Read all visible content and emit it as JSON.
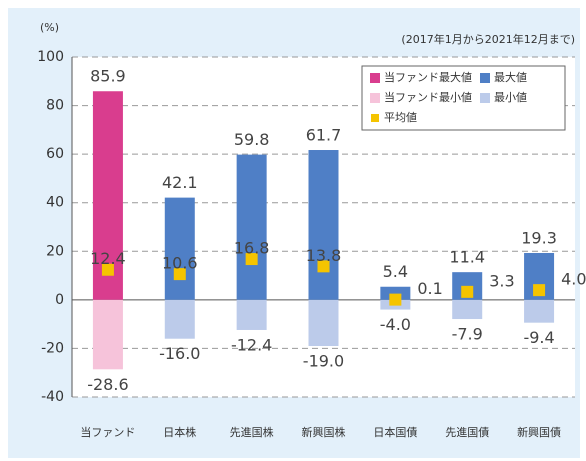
{
  "chart_data": {
    "type": "range_bar",
    "y_label": "(%)",
    "annotation": "(2017年1月から2021年12月まで)",
    "categories": [
      "当ファンド",
      "日本株",
      "先進国株",
      "新興国株",
      "日本国債",
      "先進国債",
      "新興国債"
    ],
    "ylim": [
      -40,
      100
    ],
    "yticks": [
      -40,
      -20,
      0,
      20,
      40,
      60,
      80,
      100
    ],
    "grid": true,
    "legend": "upper right",
    "series": [
      {
        "name": "当ファンド最大値",
        "color": "#d93d8e",
        "role": "bar",
        "values": [
          85.9,
          null,
          null,
          null,
          null,
          null,
          null
        ],
        "value_labels": [
          "85.9",
          null,
          null,
          null,
          null,
          null,
          null
        ]
      },
      {
        "name": "最大値",
        "color": "#4f7fc6",
        "role": "bar",
        "values": [
          null,
          42.1,
          59.8,
          61.7,
          5.4,
          11.4,
          19.3
        ],
        "value_labels": [
          null,
          "42.1",
          "59.8",
          "61.7",
          "5.4",
          "11.4",
          "19.3"
        ]
      },
      {
        "name": "当ファンド最小値",
        "color": "#f6c3da",
        "role": "bar",
        "values": [
          -28.6,
          null,
          null,
          null,
          null,
          null,
          null
        ],
        "value_labels": [
          "-28.6",
          null,
          null,
          null,
          null,
          null,
          null
        ]
      },
      {
        "name": "最小値",
        "color": "#bccbea",
        "role": "bar",
        "values": [
          null,
          -16.0,
          -12.4,
          -19.0,
          -4.0,
          -7.9,
          -9.4
        ],
        "value_labels": [
          null,
          "-16.0",
          "-12.4",
          "-19.0",
          "-4.0",
          "-7.9",
          "-9.4"
        ]
      },
      {
        "name": "平均値",
        "color": "#f5c400",
        "role": "marker",
        "values": [
          12.4,
          10.6,
          16.8,
          13.8,
          0.1,
          3.3,
          4.0
        ],
        "value_labels": [
          "12.4",
          "10.6",
          "16.8",
          "13.8",
          "0.1",
          "3.3",
          "4.0"
        ]
      }
    ]
  }
}
